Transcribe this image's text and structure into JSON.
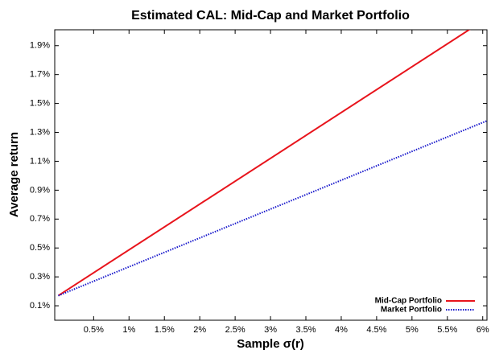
{
  "chart_data": {
    "type": "line",
    "title": "Estimated CAL: Mid-Cap and Market Portfolio",
    "x_label": "Sample σ(r)",
    "y_label": "Average return",
    "x": [
      0,
      6.06
    ],
    "series": [
      {
        "name": "Mid-Cap Portfolio",
        "color": "#e8141c",
        "dash": "solid",
        "values": [
          0.17,
          2.09
        ]
      },
      {
        "name": "Market Portfolio",
        "color": "#1a1acc",
        "dash": "dotted",
        "values": [
          0.17,
          1.38
        ]
      }
    ],
    "xlim": [
      -0.05,
      6.06
    ],
    "ylim": [
      0,
      2.01
    ],
    "xticks": [
      {
        "value": 0.5,
        "label": "0.5%"
      },
      {
        "value": 1,
        "label": "1%"
      },
      {
        "value": 1.5,
        "label": "1.5%"
      },
      {
        "value": 2,
        "label": "2%"
      },
      {
        "value": 2.5,
        "label": "2.5%"
      },
      {
        "value": 3,
        "label": "3%"
      },
      {
        "value": 3.5,
        "label": "3.5%"
      },
      {
        "value": 4,
        "label": "4%"
      },
      {
        "value": 4.5,
        "label": "4.5%"
      },
      {
        "value": 5,
        "label": "5%"
      },
      {
        "value": 5.5,
        "label": "5.5%"
      },
      {
        "value": 6,
        "label": "6%"
      }
    ],
    "yticks": [
      {
        "value": 0.1,
        "label": "0.1%"
      },
      {
        "value": 0.3,
        "label": "0.3%"
      },
      {
        "value": 0.5,
        "label": "0.5%"
      },
      {
        "value": 0.7,
        "label": "0.7%"
      },
      {
        "value": 0.9,
        "label": "0.9%"
      },
      {
        "value": 1.1,
        "label": "1.1%"
      },
      {
        "value": 1.3,
        "label": "1.3%"
      },
      {
        "value": 1.5,
        "label": "1.5%"
      },
      {
        "value": 1.7,
        "label": "1.7%"
      },
      {
        "value": 1.9,
        "label": "1.9%"
      }
    ],
    "legend": "bottom-right",
    "grid": false
  }
}
